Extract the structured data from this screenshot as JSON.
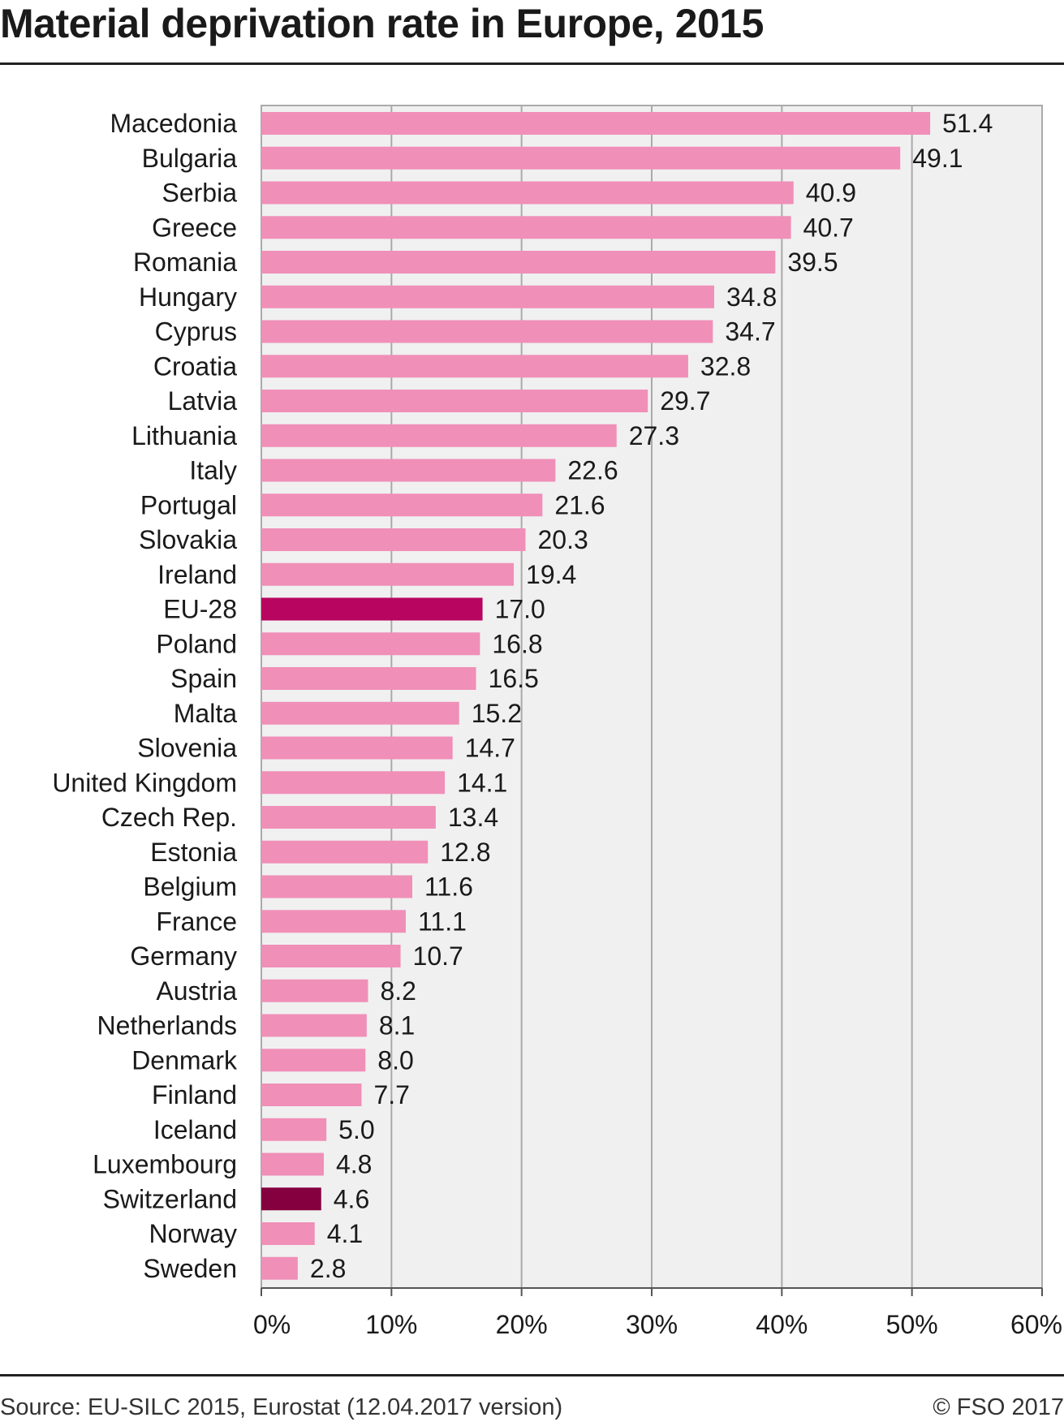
{
  "title": "Material deprivation rate in Europe, 2015",
  "source": "Source: EU-SILC 2015, Eurostat (12.04.2017 version)",
  "credit": "© FSO 2017",
  "colors": {
    "bar": "#f08fb8",
    "highlight_eu": "#b8055f",
    "highlight_ch": "#85003f",
    "plot_background": "#f0f0f0",
    "grid": "#aaaaaa"
  },
  "chart_data": {
    "type": "bar",
    "orientation": "horizontal",
    "title": "Material deprivation rate in Europe, 2015",
    "xlabel": "",
    "ylabel": "",
    "xlim": [
      0,
      60
    ],
    "x_ticks": [
      "0%",
      "10%",
      "20%",
      "30%",
      "40%",
      "50%",
      "60%"
    ],
    "grid": true,
    "legend": "none",
    "categories": [
      "Macedonia",
      "Bulgaria",
      "Serbia",
      "Greece",
      "Romania",
      "Hungary",
      "Cyprus",
      "Croatia",
      "Latvia",
      "Lithuania",
      "Italy",
      "Portugal",
      "Slovakia",
      "Ireland",
      "EU-28",
      "Poland",
      "Spain",
      "Malta",
      "Slovenia",
      "United Kingdom",
      "Czech Rep.",
      "Estonia",
      "Belgium",
      "France",
      "Germany",
      "Austria",
      "Netherlands",
      "Denmark",
      "Finland",
      "Iceland",
      "Luxembourg",
      "Switzerland",
      "Norway",
      "Sweden"
    ],
    "values": [
      51.4,
      49.1,
      40.9,
      40.7,
      39.5,
      34.8,
      34.7,
      32.8,
      29.7,
      27.3,
      22.6,
      21.6,
      20.3,
      19.4,
      17.0,
      16.8,
      16.5,
      15.2,
      14.7,
      14.1,
      13.4,
      12.8,
      11.6,
      11.1,
      10.7,
      8.2,
      8.1,
      8.0,
      7.7,
      5.0,
      4.8,
      4.6,
      4.1,
      2.8
    ],
    "value_labels": [
      "51.4",
      "49.1",
      "40.9",
      "40.7",
      "39.5",
      "34.8",
      "34.7",
      "32.8",
      "29.7",
      "27.3",
      "22.6",
      "21.6",
      "20.3",
      "19.4",
      "17.0",
      "16.8",
      "16.5",
      "15.2",
      "14.7",
      "14.1",
      "13.4",
      "12.8",
      "11.6",
      "11.1",
      "10.7",
      "8.2",
      "8.1",
      "8.0",
      "7.7",
      "5.0",
      "4.8",
      "4.6",
      "4.1",
      "2.8"
    ],
    "highlights": {
      "EU-28": "highlight_eu",
      "Switzerland": "highlight_ch"
    }
  }
}
